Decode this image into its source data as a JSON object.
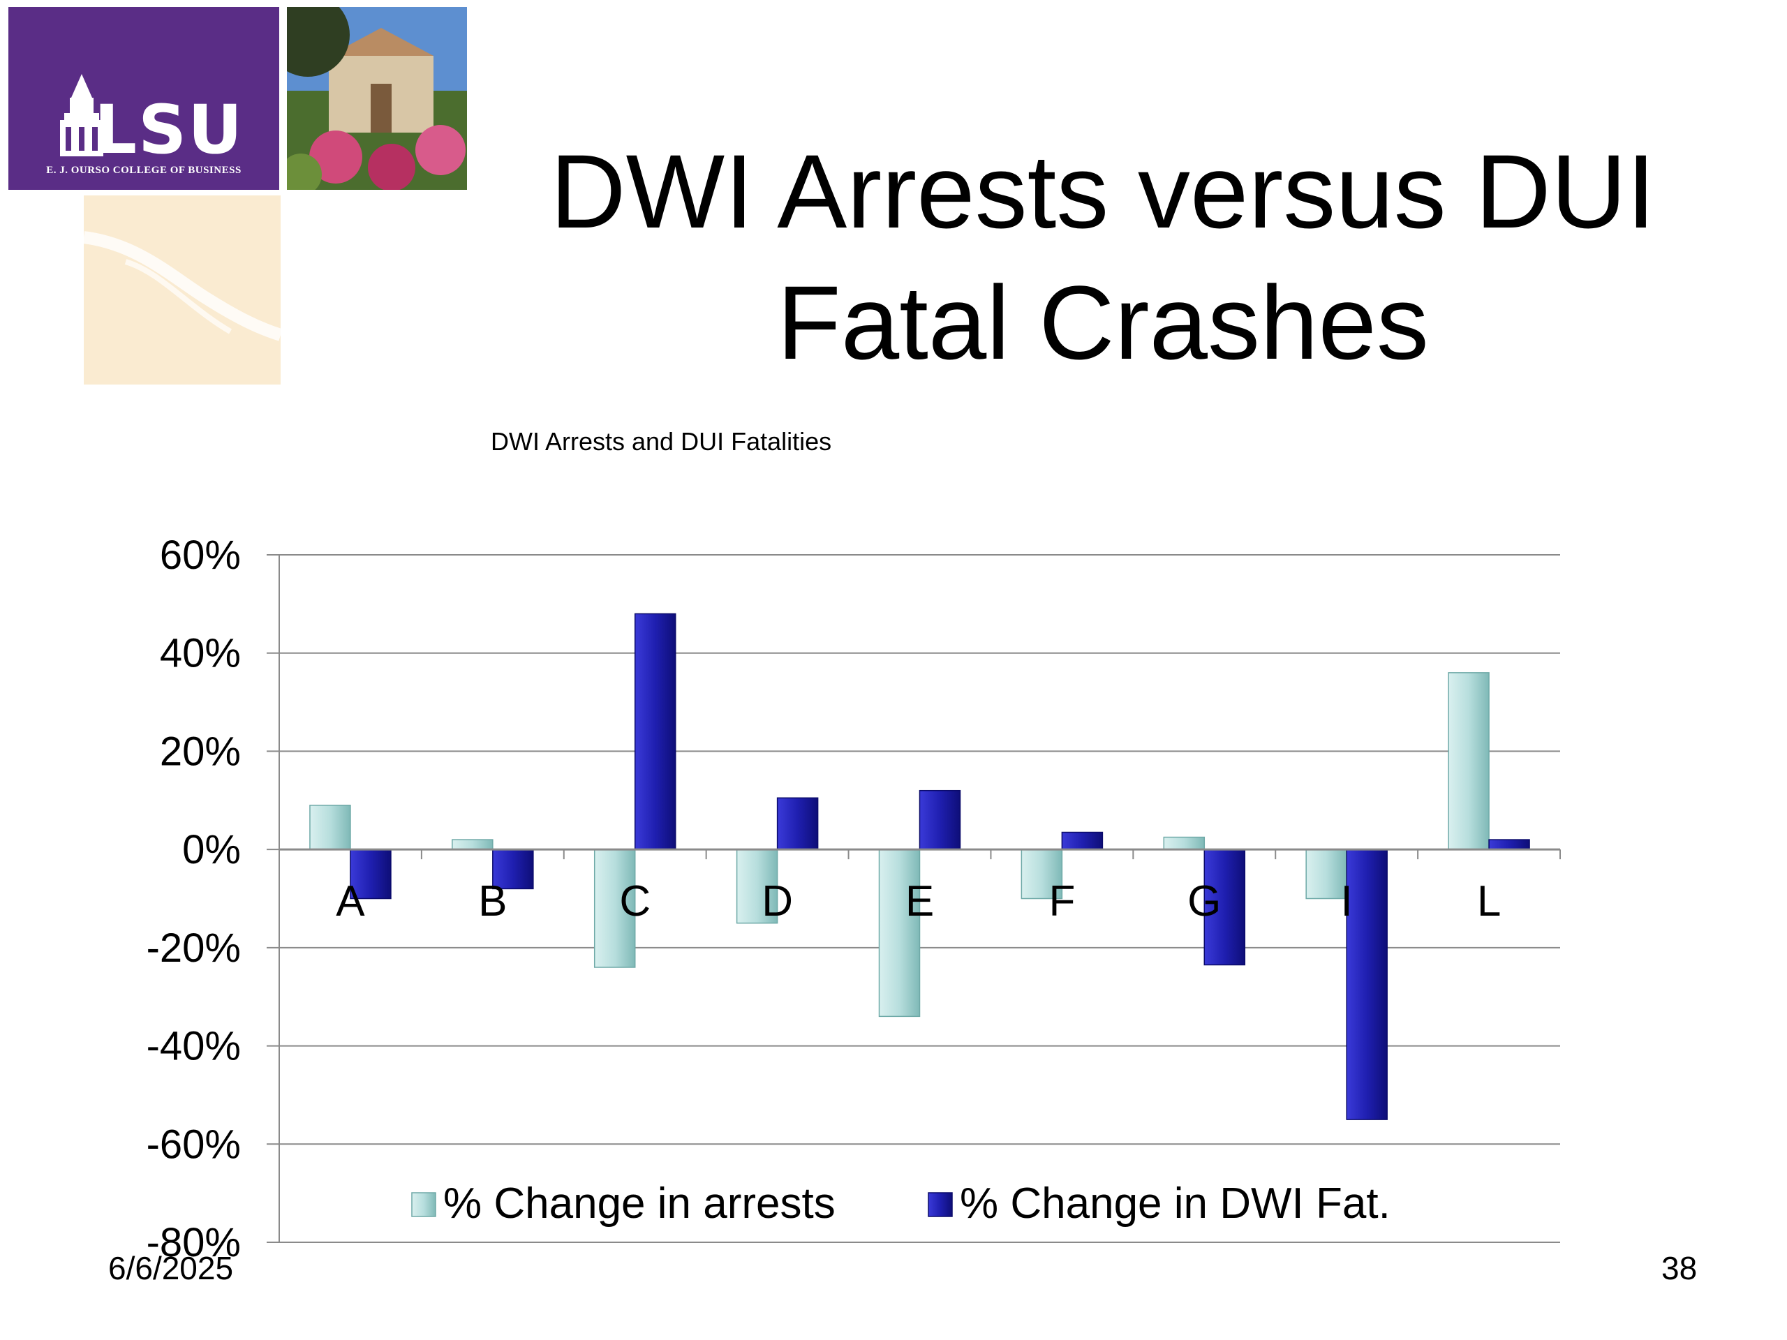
{
  "slide": {
    "title": "DWI Arrests versus DUI Fatal Crashes",
    "date": "6/6/2025",
    "page_number": "38"
  },
  "logo": {
    "name": "LSU",
    "subtitle": "E. J. OURSO COLLEGE OF BUSINESS"
  },
  "chart_data": {
    "type": "bar",
    "title": "DWI Arrests and DUI Fatalities",
    "categories": [
      "A",
      "B",
      "C",
      "D",
      "E",
      "F",
      "G",
      "I",
      "L"
    ],
    "series": [
      {
        "name": "% Change in arrests",
        "color": "#b7dedd",
        "values": [
          9,
          2,
          -24,
          -15,
          -34,
          -10,
          2.5,
          -10,
          36
        ]
      },
      {
        "name": "% Change in DWI Fat.",
        "color": "#1f1fb0",
        "values": [
          -10,
          -8,
          48,
          10.5,
          12,
          3.5,
          -23.5,
          -55,
          2
        ]
      }
    ],
    "ylim": [
      -80,
      60
    ],
    "yticks": [
      "60%",
      "40%",
      "20%",
      "0%",
      "-20%",
      "-40%",
      "-60%",
      "-80%"
    ],
    "grid": true,
    "legend_position": "bottom"
  }
}
